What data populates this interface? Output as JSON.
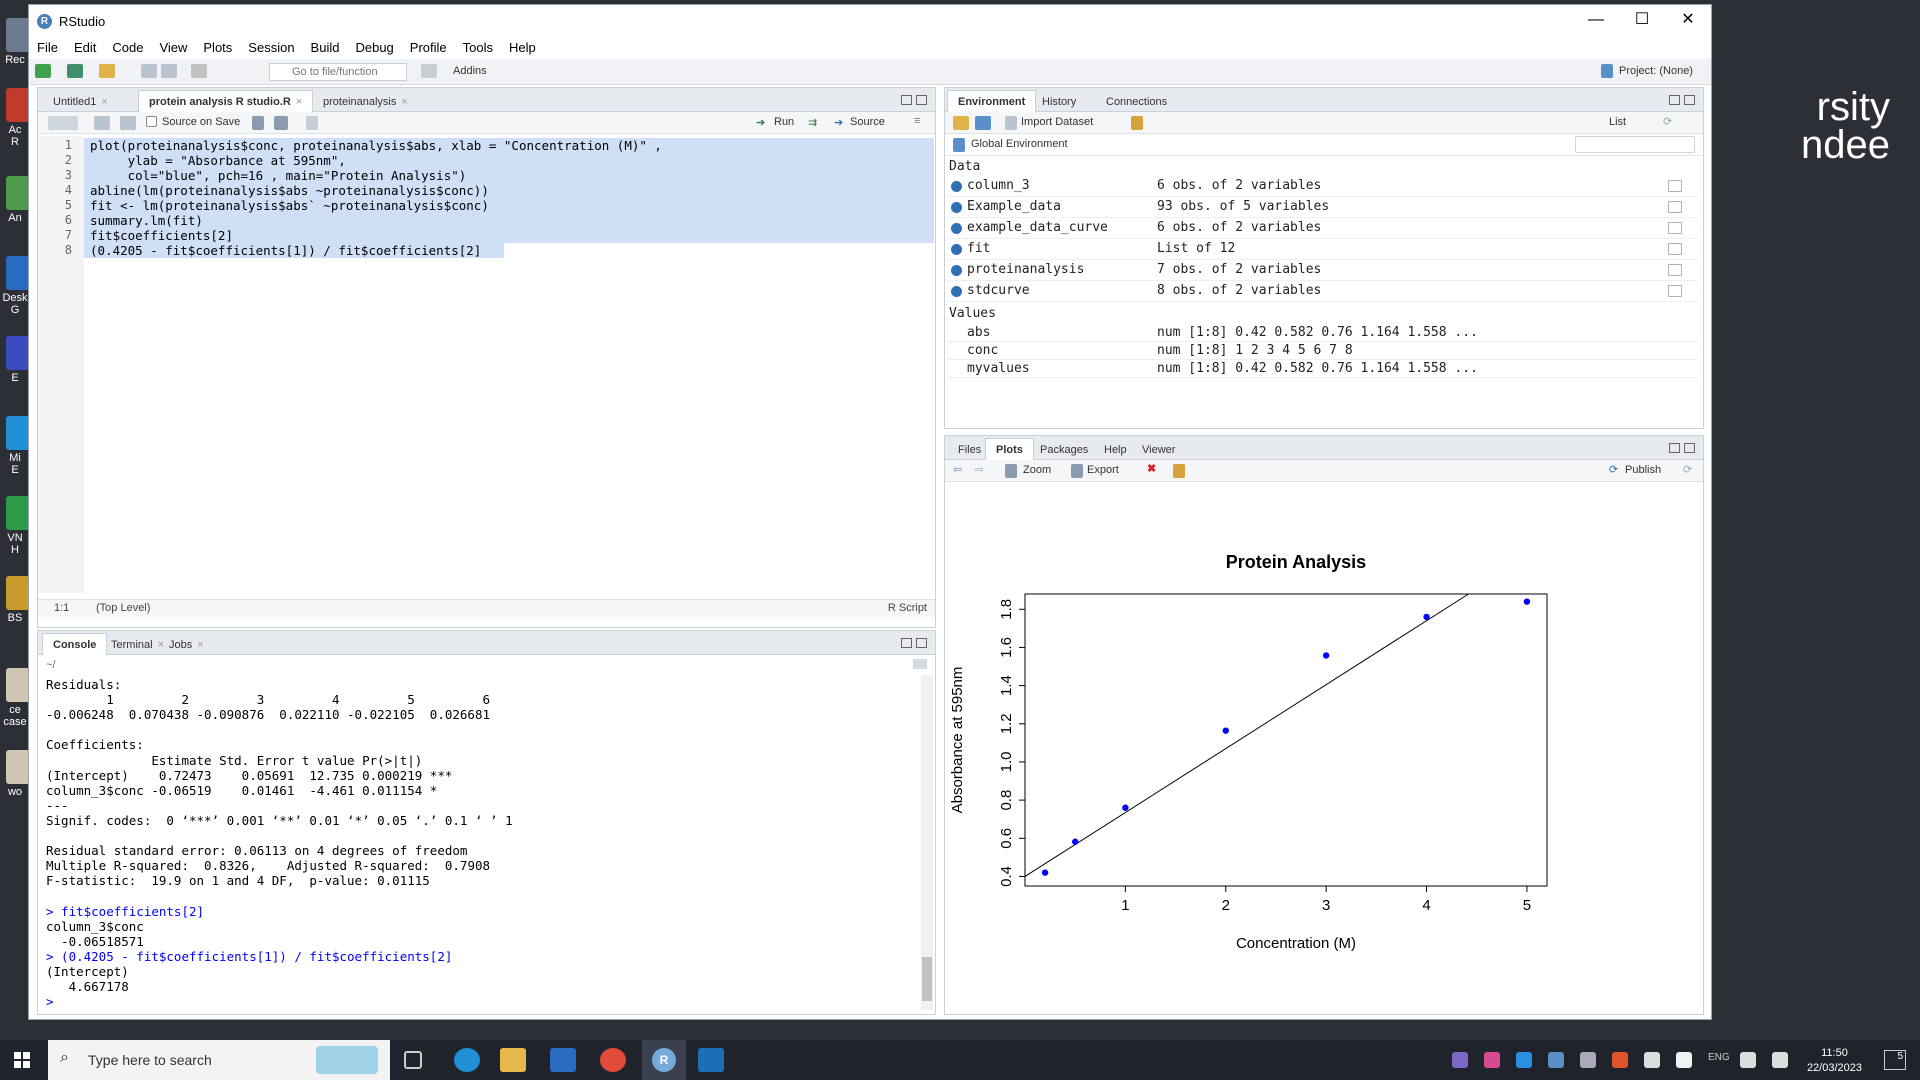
{
  "desktop": {
    "background_text": [
      "rsity",
      "ndee"
    ],
    "icons": [
      {
        "label": "Rec",
        "color": "#6b7a8f"
      },
      {
        "label": "Ac\nR",
        "color": "#c0392b"
      },
      {
        "label": "An",
        "color": "#4c9c4c"
      },
      {
        "label": "Desk\nG",
        "color": "#2a6bc2"
      },
      {
        "label": "E",
        "color": "#3b4cc0"
      },
      {
        "label": "Mi\nE",
        "color": "#1f8fd6"
      },
      {
        "label": "VN\nH",
        "color": "#2e9b4a"
      },
      {
        "label": "BS",
        "color": "#c99b2c"
      },
      {
        "label": "ce\ncase",
        "color": "#cfc6b2"
      },
      {
        "label": "wo",
        "color": "#cfc6b2"
      }
    ]
  },
  "window": {
    "title": "RStudio",
    "logo": "R",
    "controls": {
      "minimize": "—",
      "maximize": "☐",
      "close": "✕"
    }
  },
  "menu": [
    "File",
    "Edit",
    "Code",
    "View",
    "Plots",
    "Session",
    "Build",
    "Debug",
    "Profile",
    "Tools",
    "Help"
  ],
  "toolbar": {
    "goto_placeholder": "Go to file/function",
    "addins": "Addins",
    "project": "Project: (None)"
  },
  "editor": {
    "tabs": [
      {
        "label": "Untitled1",
        "active": false
      },
      {
        "label": "protein analysis R studio.R",
        "active": true
      },
      {
        "label": "proteinanalysis",
        "active": false
      }
    ],
    "source_on_save": "Source on Save",
    "run": "Run",
    "source": "Source",
    "lines": [
      "plot(proteinanalysis$conc, proteinanalysis$abs, xlab = \"Concentration (M)\" ,",
      "     ylab = \"Absorbance at 595nm\",",
      "     col=\"blue\", pch=16 , main=\"Protein Analysis\")",
      "abline(lm(proteinanalysis$abs ~proteinanalysis$conc))",
      "fit <- lm(proteinanalysis$abs` ~proteinanalysis$conc)",
      "summary.lm(fit)",
      "fit$coefficients[2]",
      "(0.4205 - fit$coefficients[1]) / fit$coefficients[2]"
    ],
    "line_numbers": [
      "1",
      "2",
      "3",
      "4",
      "5",
      "6",
      "7",
      "8"
    ],
    "status_pos": "1:1",
    "status_level": "(Top Level)",
    "status_type": "R Script"
  },
  "console": {
    "tabs": [
      {
        "label": "Console",
        "active": true
      },
      {
        "label": "Terminal",
        "active": false
      },
      {
        "label": "Jobs",
        "active": false
      }
    ],
    "path": "~/",
    "lines": [
      {
        "t": "Residuals:",
        "c": ""
      },
      {
        "t": "        1         2         3         4         5         6",
        "c": ""
      },
      {
        "t": "-0.006248  0.070438 -0.090876  0.022110 -0.022105  0.026681",
        "c": ""
      },
      {
        "t": "",
        "c": ""
      },
      {
        "t": "Coefficients:",
        "c": ""
      },
      {
        "t": "              Estimate Std. Error t value Pr(>|t|)",
        "c": ""
      },
      {
        "t": "(Intercept)    0.72473    0.05691  12.735 0.000219 ***",
        "c": ""
      },
      {
        "t": "column_3$conc -0.06519    0.01461  -4.461 0.011154 *",
        "c": ""
      },
      {
        "t": "---",
        "c": ""
      },
      {
        "t": "Signif. codes:  0 ‘***’ 0.001 ‘**’ 0.01 ‘*’ 0.05 ‘.’ 0.1 ‘ ’ 1",
        "c": ""
      },
      {
        "t": "",
        "c": ""
      },
      {
        "t": "Residual standard error: 0.06113 on 4 degrees of freedom",
        "c": ""
      },
      {
        "t": "Multiple R-squared:  0.8326,\tAdjusted R-squared:  0.7908",
        "c": ""
      },
      {
        "t": "F-statistic:  19.9 on 1 and 4 DF,  p-value: 0.01115",
        "c": ""
      },
      {
        "t": "",
        "c": ""
      },
      {
        "t": "> fit$coefficients[2]",
        "c": "blue"
      },
      {
        "t": "column_3$conc",
        "c": ""
      },
      {
        "t": "  -0.06518571",
        "c": ""
      },
      {
        "t": "> (0.4205 - fit$coefficients[1]) / fit$coefficients[2]",
        "c": "blue"
      },
      {
        "t": "(Intercept)",
        "c": ""
      },
      {
        "t": "   4.667178",
        "c": ""
      },
      {
        "t": "> ",
        "c": "blue"
      }
    ]
  },
  "environment": {
    "tabs": [
      {
        "label": "Environment",
        "active": true
      },
      {
        "label": "History",
        "active": false
      },
      {
        "label": "Connections",
        "active": false
      }
    ],
    "import_dataset": "Import Dataset",
    "list_mode": "List",
    "scope": "Global Environment",
    "data_header": "Data",
    "data": [
      {
        "name": "column_3",
        "value": "6 obs. of 2 variables"
      },
      {
        "name": "Example_data",
        "value": "93 obs. of 5 variables"
      },
      {
        "name": "example_data_curve",
        "value": "6 obs. of 2 variables"
      },
      {
        "name": "fit",
        "value": "List of 12"
      },
      {
        "name": "proteinanalysis",
        "value": "7 obs. of 2 variables"
      },
      {
        "name": "stdcurve",
        "value": "8 obs. of 2 variables"
      }
    ],
    "values_header": "Values",
    "values": [
      {
        "name": "abs",
        "value": "num [1:8] 0.42 0.582 0.76 1.164 1.558 ..."
      },
      {
        "name": "conc",
        "value": "num [1:8] 1 2 3 4 5 6 7 8"
      },
      {
        "name": "myvalues",
        "value": "num [1:8] 0.42 0.582 0.76 1.164 1.558 ..."
      }
    ]
  },
  "files_pane": {
    "tabs": [
      {
        "label": "Files",
        "active": false
      },
      {
        "label": "Plots",
        "active": true
      },
      {
        "label": "Packages",
        "active": false
      },
      {
        "label": "Help",
        "active": false
      },
      {
        "label": "Viewer",
        "active": false
      }
    ],
    "zoom": "Zoom",
    "export": "Export",
    "publish": "Publish"
  },
  "chart_data": {
    "type": "scatter",
    "title": "Protein Analysis",
    "xlabel": "Concentration (M)",
    "ylabel": "Absorbance at 595nm",
    "x": [
      0.2,
      0.5,
      1,
      2,
      3,
      4,
      5
    ],
    "y": [
      0.42,
      0.582,
      0.76,
      1.164,
      1.558,
      1.76,
      1.84
    ],
    "xlim": [
      0.0,
      5.2
    ],
    "ylim": [
      0.35,
      1.88
    ],
    "xticks": [
      "1",
      "2",
      "3",
      "4",
      "5"
    ],
    "yticks": [
      "0.4",
      "0.6",
      "0.8",
      "1.0",
      "1.2",
      "1.4",
      "1.6",
      "1.8"
    ],
    "point_color": "#0000ff",
    "regression_line": {
      "intercept": 0.4,
      "slope": 0.335
    },
    "grid": false
  },
  "taskbar": {
    "search_placeholder": "Type here to search",
    "time": "11:50",
    "date": "22/03/2023",
    "notification_count": "5"
  }
}
